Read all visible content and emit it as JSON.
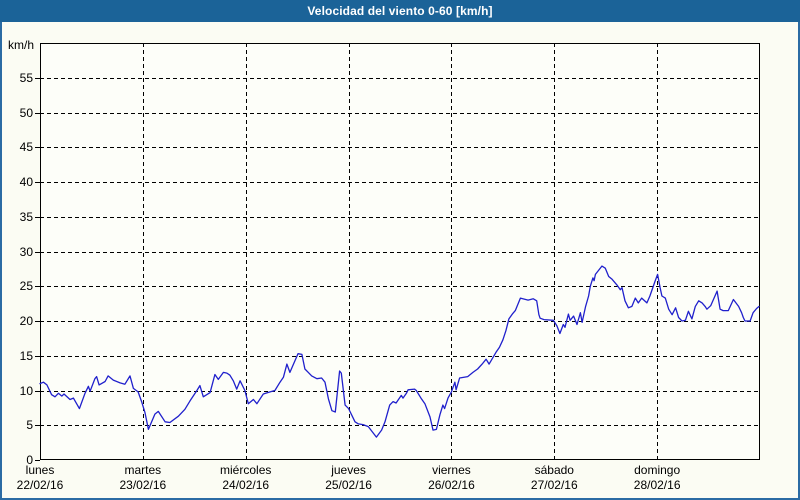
{
  "window": {
    "title": "Velocidad del viento 0-60 [km/h]"
  },
  "colors": {
    "titlebar_bg": "#1b6398",
    "title_text": "#ffffff",
    "frame": "#2b6ba3",
    "page_bg": "#fbfcf3",
    "plot_bg": "#fdfef9",
    "grid": "#000000",
    "axis": "#000000",
    "line": "#2020cc"
  },
  "chart_data": {
    "type": "line",
    "title": "Velocidad del viento 0-60 [km/h]",
    "unit_label": "km/h",
    "grid": "dashed",
    "legend": "none",
    "y_axis": {
      "min": 0,
      "max": 60,
      "tick_step": 5,
      "tick_values": [
        0,
        5,
        10,
        15,
        20,
        25,
        30,
        35,
        40,
        45,
        50,
        55
      ]
    },
    "x_axis": {
      "hours_total": 168,
      "days": [
        {
          "name": "lunes",
          "date": "22/02/16"
        },
        {
          "name": "martes",
          "date": "23/02/16"
        },
        {
          "name": "miércoles",
          "date": "24/02/16"
        },
        {
          "name": "jueves",
          "date": "25/02/16"
        },
        {
          "name": "viernes",
          "date": "26/02/16"
        },
        {
          "name": "sábado",
          "date": "27/02/16"
        },
        {
          "name": "domingo",
          "date": "28/02/16"
        }
      ]
    },
    "series": [
      {
        "name": "velocidad_viento_kmh",
        "points": [
          [
            0,
            11.0
          ],
          [
            0.8,
            11.2
          ],
          [
            1.6,
            10.8
          ],
          [
            2.7,
            9.4
          ],
          [
            3.5,
            9.1
          ],
          [
            4.3,
            9.6
          ],
          [
            5.1,
            9.2
          ],
          [
            5.6,
            9.5
          ],
          [
            7,
            8.7
          ],
          [
            7.8,
            8.9
          ],
          [
            9.2,
            7.4
          ],
          [
            10.5,
            9.6
          ],
          [
            11.3,
            10.6
          ],
          [
            11.7,
            9.9
          ],
          [
            12.8,
            11.7
          ],
          [
            13.2,
            12.0
          ],
          [
            13.8,
            10.8
          ],
          [
            15.2,
            11.3
          ],
          [
            15.9,
            12.1
          ],
          [
            17.1,
            11.5
          ],
          [
            18.7,
            11.1
          ],
          [
            19.8,
            10.9
          ],
          [
            21,
            12.1
          ],
          [
            21.8,
            10.3
          ],
          [
            22.9,
            9.8
          ],
          [
            23.7,
            8.4
          ],
          [
            24.5,
            6.8
          ],
          [
            25.3,
            4.4
          ],
          [
            26.8,
            6.6
          ],
          [
            27.6,
            7.0
          ],
          [
            29.2,
            5.5
          ],
          [
            30.3,
            5.4
          ],
          [
            32.3,
            6.3
          ],
          [
            33.8,
            7.3
          ],
          [
            35,
            8.5
          ],
          [
            36.6,
            10.0
          ],
          [
            37.3,
            10.7
          ],
          [
            38.1,
            9.1
          ],
          [
            39.7,
            9.7
          ],
          [
            40.8,
            12.3
          ],
          [
            41.6,
            11.6
          ],
          [
            42.8,
            12.6
          ],
          [
            43.6,
            12.5
          ],
          [
            44.3,
            12.2
          ],
          [
            45.1,
            11.4
          ],
          [
            45.9,
            10.2
          ],
          [
            46.7,
            11.4
          ],
          [
            47.8,
            10.0
          ],
          [
            48.6,
            8.1
          ],
          [
            49.8,
            8.7
          ],
          [
            50.6,
            8.1
          ],
          [
            52.1,
            9.5
          ],
          [
            53.7,
            9.8
          ],
          [
            54.8,
            10.0
          ],
          [
            56,
            11.2
          ],
          [
            56.8,
            11.9
          ],
          [
            57.6,
            13.8
          ],
          [
            58.3,
            12.6
          ],
          [
            59.5,
            14.3
          ],
          [
            60.2,
            15.3
          ],
          [
            61.1,
            15.2
          ],
          [
            61.8,
            13.1
          ],
          [
            62.6,
            12.6
          ],
          [
            63.4,
            12.1
          ],
          [
            64.6,
            11.7
          ],
          [
            65.7,
            11.8
          ],
          [
            66.5,
            11.2
          ],
          [
            67.3,
            8.8
          ],
          [
            68.1,
            7.1
          ],
          [
            68.9,
            6.9
          ],
          [
            69.9,
            12.8
          ],
          [
            70.3,
            12.5
          ],
          [
            71.2,
            7.9
          ],
          [
            72,
            7.4
          ],
          [
            73.5,
            5.5
          ],
          [
            74.3,
            5.2
          ],
          [
            75.4,
            5.1
          ],
          [
            76.6,
            4.8
          ],
          [
            78.5,
            3.3
          ],
          [
            79.7,
            4.3
          ],
          [
            80.5,
            5.5
          ],
          [
            81.6,
            7.9
          ],
          [
            82.4,
            8.4
          ],
          [
            83.1,
            8.2
          ],
          [
            84.3,
            9.3
          ],
          [
            84.7,
            8.9
          ],
          [
            85.5,
            9.6
          ],
          [
            85.9,
            10.1
          ],
          [
            87.4,
            10.2
          ],
          [
            87.8,
            10.0
          ],
          [
            89,
            8.8
          ],
          [
            89.8,
            8.1
          ],
          [
            91,
            6.2
          ],
          [
            91.7,
            4.3
          ],
          [
            92.5,
            4.4
          ],
          [
            93.3,
            6.5
          ],
          [
            94,
            7.9
          ],
          [
            94.4,
            7.4
          ],
          [
            95.2,
            8.9
          ],
          [
            96,
            9.8
          ],
          [
            96.8,
            11.2
          ],
          [
            97.1,
            10.1
          ],
          [
            97.9,
            11.8
          ],
          [
            99.8,
            12.0
          ],
          [
            101,
            12.6
          ],
          [
            102.1,
            13.1
          ],
          [
            103.3,
            13.9
          ],
          [
            104.1,
            14.5
          ],
          [
            104.8,
            13.8
          ],
          [
            106.4,
            15.5
          ],
          [
            107.2,
            16.2
          ],
          [
            108,
            17.3
          ],
          [
            108.7,
            18.6
          ],
          [
            109.4,
            20.3
          ],
          [
            110.2,
            21.0
          ],
          [
            110.9,
            21.5
          ],
          [
            111.5,
            22.4
          ],
          [
            112.1,
            23.3
          ],
          [
            113.9,
            23.0
          ],
          [
            115.1,
            23.2
          ],
          [
            115.9,
            22.9
          ],
          [
            116.4,
            20.9
          ],
          [
            116.7,
            20.4
          ],
          [
            117.6,
            20.2
          ],
          [
            119.8,
            20.1
          ],
          [
            120.6,
            19.3
          ],
          [
            121.3,
            18.2
          ],
          [
            122.1,
            19.5
          ],
          [
            122.5,
            19.1
          ],
          [
            123.3,
            21.0
          ],
          [
            123.7,
            20.1
          ],
          [
            124.5,
            20.7
          ],
          [
            125.3,
            19.5
          ],
          [
            126.1,
            21.2
          ],
          [
            126.5,
            19.8
          ],
          [
            127.3,
            22.1
          ],
          [
            128,
            23.6
          ],
          [
            128.4,
            25.0
          ],
          [
            129,
            26.2
          ],
          [
            129.3,
            25.8
          ],
          [
            129.6,
            26.7
          ],
          [
            131.1,
            27.9
          ],
          [
            131.9,
            27.6
          ],
          [
            132.7,
            26.4
          ],
          [
            133.5,
            26.0
          ],
          [
            134.6,
            25.2
          ],
          [
            135.4,
            24.5
          ],
          [
            135.8,
            24.8
          ],
          [
            136.5,
            22.9
          ],
          [
            137.3,
            21.9
          ],
          [
            138.1,
            22.1
          ],
          [
            138.9,
            23.3
          ],
          [
            139.6,
            22.6
          ],
          [
            140.4,
            23.3
          ],
          [
            141.6,
            22.6
          ],
          [
            142.3,
            23.6
          ],
          [
            143.5,
            25.7
          ],
          [
            144.1,
            26.7
          ],
          [
            144.7,
            24.8
          ],
          [
            145.1,
            23.6
          ],
          [
            145.9,
            23.3
          ],
          [
            146.7,
            21.7
          ],
          [
            147.5,
            20.9
          ],
          [
            148.3,
            21.9
          ],
          [
            149,
            20.5
          ],
          [
            149.8,
            20.0
          ],
          [
            150.6,
            20.1
          ],
          [
            151.3,
            21.4
          ],
          [
            152.1,
            20.3
          ],
          [
            152.9,
            22.1
          ],
          [
            153.7,
            22.9
          ],
          [
            154.5,
            22.6
          ],
          [
            155.2,
            22.1
          ],
          [
            155.6,
            21.7
          ],
          [
            156.5,
            22.2
          ],
          [
            158,
            24.3
          ],
          [
            158.7,
            21.7
          ],
          [
            159.4,
            21.5
          ],
          [
            160.6,
            21.5
          ],
          [
            161.8,
            23.1
          ],
          [
            163,
            22.1
          ],
          [
            163.7,
            21.2
          ],
          [
            164.1,
            20.5
          ],
          [
            164.5,
            20.0
          ],
          [
            165.7,
            20.0
          ],
          [
            166.4,
            21.2
          ],
          [
            167.2,
            21.8
          ],
          [
            167.8,
            22.1
          ]
        ]
      }
    ]
  }
}
